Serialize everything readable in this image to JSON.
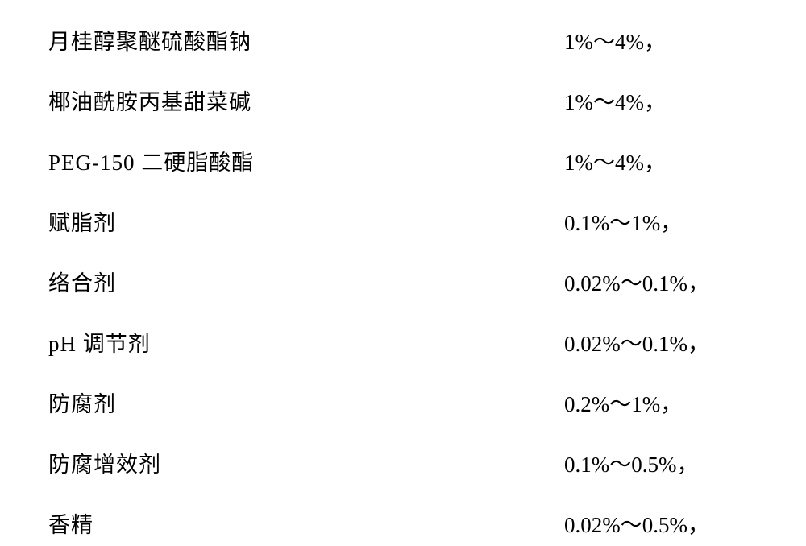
{
  "rows": [
    {
      "label": "月桂醇聚醚硫酸酯钠",
      "value": "1%～4%，"
    },
    {
      "label": "椰油酰胺丙基甜菜碱",
      "value": "1%～4%，"
    },
    {
      "label": "PEG-150 二硬脂酸酯",
      "value": "1%～4%，"
    },
    {
      "label": "赋脂剂",
      "value": "0.1%～1%，"
    },
    {
      "label": "络合剂",
      "value": "0.02%～0.1%，"
    },
    {
      "label": "pH 调节剂",
      "value": "0.02%～0.1%，"
    },
    {
      "label": "防腐剂",
      "value": "0.2%～1%，"
    },
    {
      "label": "防腐增效剂",
      "value": "0.1%～0.5%，"
    },
    {
      "label": "香精",
      "value": "0.02%～0.5%，"
    }
  ],
  "styling": {
    "background_color": "#ffffff",
    "text_color": "#000000",
    "label_fontsize": 27,
    "value_fontsize": 27,
    "row_spacing": 36,
    "label_font": "SimSun",
    "value_font": "Times New Roman"
  }
}
